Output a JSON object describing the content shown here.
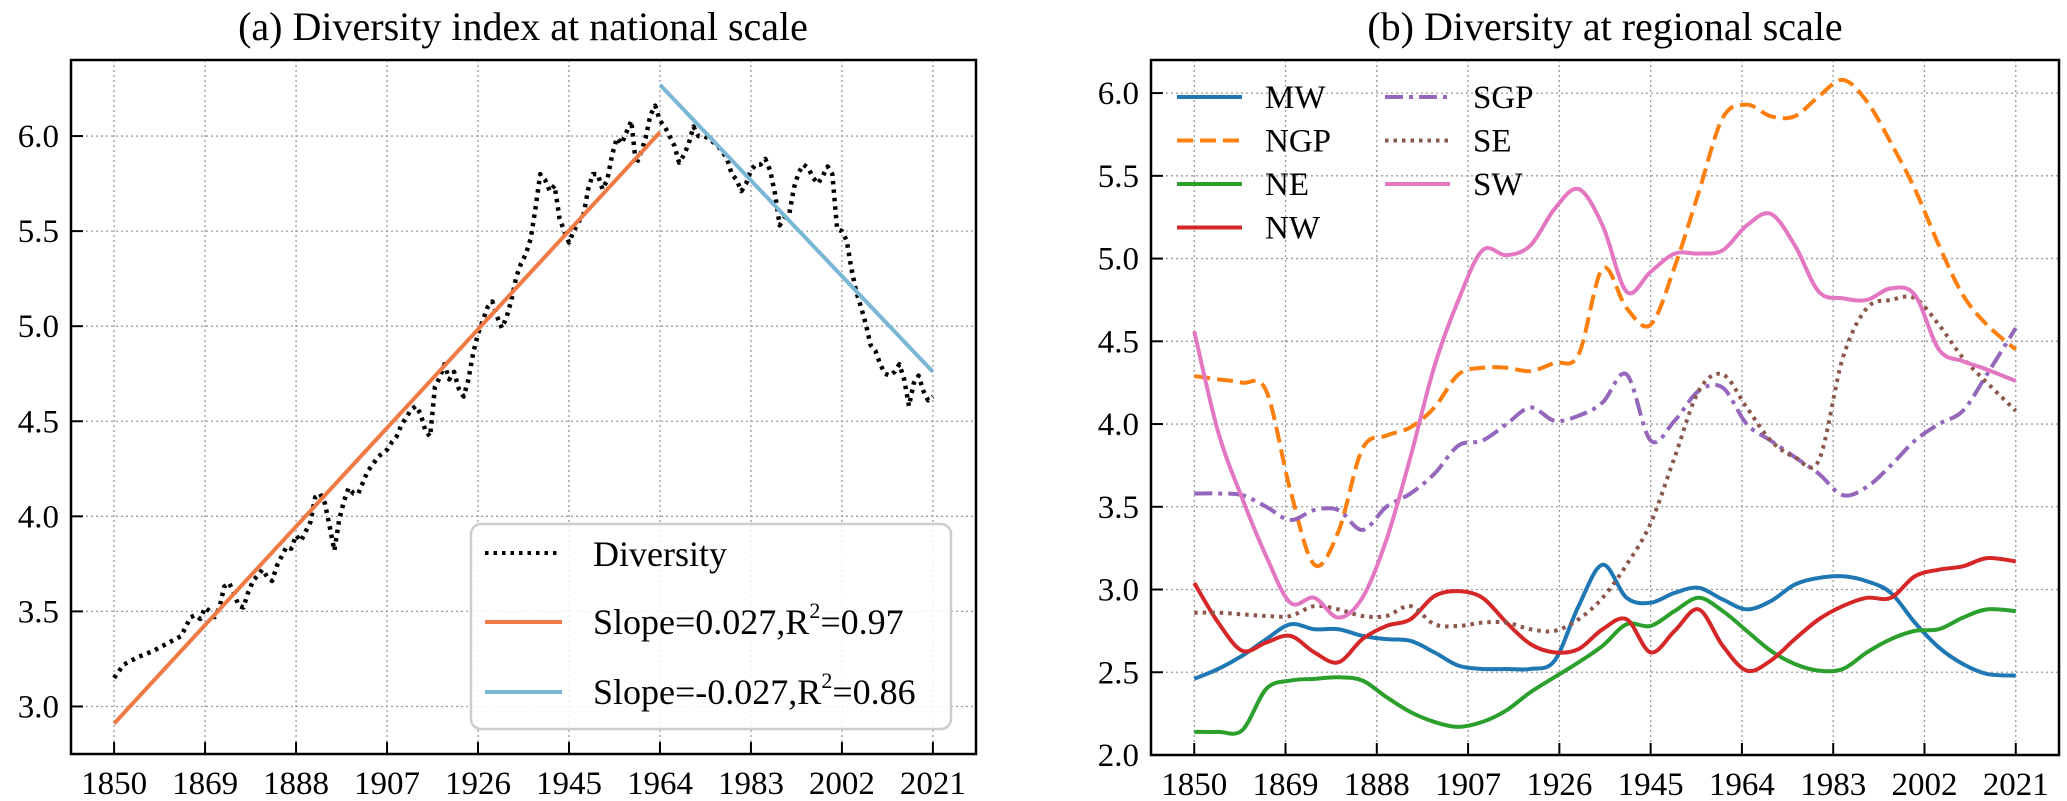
{
  "chart_data": [
    {
      "id": "a",
      "type": "line",
      "title": "(a) Diversity index at national scale",
      "xlabel": "",
      "ylabel": "",
      "xlim": [
        1841,
        2030
      ],
      "ylim": [
        2.75,
        6.4
      ],
      "grid": true,
      "xticks": [
        1850,
        1869,
        1888,
        1907,
        1926,
        1945,
        1964,
        1983,
        2002,
        2021
      ],
      "yticks": [
        3.0,
        3.5,
        4.0,
        4.5,
        5.0,
        5.5,
        6.0
      ],
      "ytick_labels": [
        "3.0",
        "3.5",
        "4.0",
        "4.5",
        "5.0",
        "5.5",
        "6.0"
      ],
      "legend_position": "lower-right",
      "series": [
        {
          "name": "Diversity",
          "style": "dotted",
          "color": "#000000",
          "x": [
            1850,
            1852,
            1855,
            1858,
            1861,
            1864,
            1866,
            1867,
            1868,
            1869,
            1870,
            1871,
            1872,
            1873,
            1874,
            1875,
            1876,
            1877,
            1878,
            1879,
            1880,
            1881,
            1882,
            1883,
            1884,
            1885,
            1886,
            1887,
            1888,
            1889,
            1890,
            1891,
            1892,
            1893,
            1894,
            1895,
            1896,
            1897,
            1898,
            1899,
            1900,
            1901,
            1902,
            1903,
            1904,
            1905,
            1906,
            1907,
            1908,
            1909,
            1910,
            1911,
            1912,
            1913,
            1914,
            1915,
            1916,
            1917,
            1918,
            1919,
            1920,
            1921,
            1922,
            1923,
            1924,
            1925,
            1926,
            1927,
            1928,
            1929,
            1930,
            1931,
            1932,
            1933,
            1934,
            1935,
            1936,
            1937,
            1938,
            1939,
            1940,
            1941,
            1942,
            1943,
            1944,
            1945,
            1946,
            1947,
            1948,
            1949,
            1950,
            1951,
            1952,
            1953,
            1954,
            1955,
            1956,
            1957,
            1958,
            1959,
            1960,
            1961,
            1962,
            1963,
            1964,
            1965,
            1966,
            1967,
            1968,
            1969,
            1970,
            1971,
            1972,
            1973,
            1974,
            1975,
            1976,
            1977,
            1978,
            1979,
            1980,
            1981,
            1982,
            1983,
            1984,
            1985,
            1986,
            1987,
            1988,
            1989,
            1990,
            1991,
            1992,
            1993,
            1994,
            1995,
            1996,
            1997,
            1998,
            1999,
            2000,
            2001,
            2002,
            2003,
            2004,
            2005,
            2006,
            2007,
            2008,
            2009,
            2010,
            2011,
            2012,
            2013,
            2014,
            2015,
            2016,
            2017,
            2018,
            2019,
            2020,
            2021
          ],
          "y": [
            3.15,
            3.22,
            3.26,
            3.29,
            3.33,
            3.37,
            3.47,
            3.48,
            3.46,
            3.52,
            3.5,
            3.47,
            3.52,
            3.63,
            3.65,
            3.6,
            3.53,
            3.52,
            3.6,
            3.66,
            3.69,
            3.72,
            3.68,
            3.66,
            3.74,
            3.79,
            3.84,
            3.83,
            3.9,
            3.87,
            3.92,
            3.97,
            4.1,
            4.12,
            4.07,
            3.95,
            3.82,
            3.98,
            4.08,
            4.15,
            4.12,
            4.12,
            4.18,
            4.24,
            4.27,
            4.31,
            4.33,
            4.35,
            4.39,
            4.42,
            4.48,
            4.52,
            4.56,
            4.58,
            4.54,
            4.45,
            4.42,
            4.68,
            4.73,
            4.8,
            4.72,
            4.76,
            4.67,
            4.63,
            4.72,
            4.86,
            4.96,
            5.03,
            5.1,
            5.13,
            5.05,
            4.99,
            5.05,
            5.14,
            5.26,
            5.33,
            5.38,
            5.46,
            5.62,
            5.8,
            5.77,
            5.71,
            5.74,
            5.57,
            5.5,
            5.44,
            5.5,
            5.55,
            5.58,
            5.72,
            5.8,
            5.8,
            5.72,
            5.77,
            5.9,
            5.99,
            5.96,
            6.02,
            6.08,
            5.85,
            5.91,
            5.99,
            6.11,
            6.16,
            6.08,
            6.05,
            6.0,
            5.95,
            5.86,
            5.9,
            5.96,
            6.05,
            6.0,
            6.0,
            5.99,
            5.97,
            5.95,
            5.92,
            5.88,
            5.8,
            5.77,
            5.71,
            5.75,
            5.82,
            5.85,
            5.85,
            5.88,
            5.82,
            5.7,
            5.53,
            5.57,
            5.59,
            5.73,
            5.81,
            5.85,
            5.83,
            5.78,
            5.75,
            5.79,
            5.84,
            5.8,
            5.51,
            5.5,
            5.45,
            5.3,
            5.18,
            5.1,
            5.01,
            4.9,
            4.87,
            4.8,
            4.75,
            4.74,
            4.76,
            4.8,
            4.72,
            4.58,
            4.7,
            4.74,
            4.66,
            4.61,
            4.63
          ]
        },
        {
          "name": "Slope=0.027,R²=0.97",
          "style": "solid",
          "color": "#f07a45",
          "x": [
            1850,
            1964
          ],
          "y": [
            2.91,
            6.02
          ]
        },
        {
          "name": "Slope=-0.027,R²=0.86",
          "style": "solid",
          "color": "#7ab6d6",
          "x": [
            1964,
            2021
          ],
          "y": [
            6.27,
            4.76
          ]
        }
      ],
      "legend": [
        {
          "label": "Diversity",
          "style": "dotted",
          "color": "#000000"
        },
        {
          "label_main": "Slope=0.027,R",
          "label_sup": "2",
          "label_tail": "=0.97",
          "style": "solid",
          "color": "#f07a45"
        },
        {
          "label_main": "Slope=-0.027,R",
          "label_sup": "2",
          "label_tail": "=0.86",
          "style": "solid",
          "color": "#7ab6d6"
        }
      ]
    },
    {
      "id": "b",
      "type": "line",
      "title": "(b) Diversity at regional scale",
      "xlabel": "",
      "ylabel": "",
      "xlim": [
        1841,
        2030
      ],
      "ylim": [
        2.0,
        6.2
      ],
      "grid": true,
      "xticks": [
        1850,
        1869,
        1888,
        1907,
        1926,
        1945,
        1964,
        1983,
        2002,
        2021
      ],
      "yticks": [
        2.0,
        2.5,
        3.0,
        3.5,
        4.0,
        4.5,
        5.0,
        5.5,
        6.0
      ],
      "ytick_labels": [
        "2.0",
        "2.5",
        "3.0",
        "3.5",
        "4.0",
        "4.5",
        "5.0",
        "5.5",
        "6.0"
      ],
      "legend_position": "upper-left",
      "x": [
        1850,
        1855,
        1860,
        1865,
        1870,
        1875,
        1880,
        1885,
        1890,
        1895,
        1900,
        1905,
        1910,
        1915,
        1920,
        1925,
        1930,
        1935,
        1940,
        1945,
        1950,
        1955,
        1960,
        1965,
        1970,
        1975,
        1980,
        1985,
        1990,
        1995,
        2000,
        2005,
        2010,
        2015,
        2021
      ],
      "series": [
        {
          "name": "MW",
          "style": "solid",
          "color": "#1f77b4",
          "y": [
            2.46,
            2.52,
            2.6,
            2.7,
            2.79,
            2.76,
            2.76,
            2.72,
            2.7,
            2.69,
            2.62,
            2.54,
            2.52,
            2.52,
            2.52,
            2.57,
            2.9,
            3.15,
            2.95,
            2.92,
            2.98,
            3.01,
            2.94,
            2.88,
            2.93,
            3.03,
            3.07,
            3.08,
            3.05,
            2.98,
            2.8,
            2.65,
            2.55,
            2.49,
            2.48
          ]
        },
        {
          "name": "NGP",
          "style": "dashed",
          "color": "#ff7f0e",
          "y": [
            4.29,
            4.27,
            4.25,
            4.2,
            3.6,
            3.15,
            3.35,
            3.85,
            3.93,
            3.98,
            4.1,
            4.3,
            4.34,
            4.34,
            4.32,
            4.37,
            4.42,
            4.94,
            4.7,
            4.6,
            4.95,
            5.4,
            5.85,
            5.93,
            5.86,
            5.86,
            5.98,
            6.08,
            5.95,
            5.7,
            5.42,
            5.08,
            4.78,
            4.6,
            4.45
          ]
        },
        {
          "name": "NE",
          "style": "solid",
          "color": "#2ca02c",
          "y": [
            2.14,
            2.14,
            2.15,
            2.4,
            2.45,
            2.46,
            2.47,
            2.45,
            2.35,
            2.26,
            2.2,
            2.17,
            2.2,
            2.27,
            2.38,
            2.47,
            2.56,
            2.66,
            2.79,
            2.78,
            2.87,
            2.95,
            2.87,
            2.75,
            2.63,
            2.55,
            2.51,
            2.52,
            2.62,
            2.7,
            2.75,
            2.76,
            2.83,
            2.88,
            2.87
          ]
        },
        {
          "name": "NW",
          "style": "solid",
          "color": "#d62728",
          "y": [
            3.04,
            2.8,
            2.63,
            2.68,
            2.72,
            2.62,
            2.56,
            2.7,
            2.78,
            2.82,
            2.96,
            2.99,
            2.95,
            2.8,
            2.67,
            2.62,
            2.64,
            2.76,
            2.82,
            2.62,
            2.75,
            2.88,
            2.66,
            2.51,
            2.57,
            2.7,
            2.82,
            2.9,
            2.95,
            2.95,
            3.08,
            3.12,
            3.14,
            3.19,
            3.17
          ]
        },
        {
          "name": "SGP",
          "style": "dashdot",
          "color": "#9467bd",
          "y": [
            3.58,
            3.58,
            3.57,
            3.5,
            3.42,
            3.48,
            3.48,
            3.36,
            3.5,
            3.58,
            3.7,
            3.87,
            3.9,
            4.0,
            4.1,
            4.02,
            4.05,
            4.13,
            4.3,
            3.9,
            4.02,
            4.2,
            4.22,
            4.0,
            3.9,
            3.8,
            3.7,
            3.57,
            3.62,
            3.75,
            3.9,
            4.0,
            4.08,
            4.3,
            4.58
          ]
        },
        {
          "name": "SE",
          "style": "dotted",
          "color": "#8c564b",
          "y": [
            2.86,
            2.86,
            2.85,
            2.84,
            2.84,
            2.9,
            2.88,
            2.84,
            2.84,
            2.9,
            2.79,
            2.78,
            2.8,
            2.8,
            2.76,
            2.75,
            2.82,
            2.95,
            3.15,
            3.4,
            3.8,
            4.2,
            4.3,
            4.1,
            3.9,
            3.8,
            3.78,
            4.4,
            4.7,
            4.75,
            4.76,
            4.6,
            4.4,
            4.25,
            4.08
          ]
        },
        {
          "name": "SW",
          "style": "solid",
          "color": "#e377c2",
          "y": [
            4.56,
            3.95,
            3.55,
            3.2,
            2.92,
            2.95,
            2.83,
            2.95,
            3.3,
            3.8,
            4.35,
            4.75,
            5.05,
            5.02,
            5.08,
            5.3,
            5.42,
            5.2,
            4.8,
            4.92,
            5.03,
            5.03,
            5.05,
            5.2,
            5.27,
            5.08,
            4.8,
            4.76,
            4.75,
            4.82,
            4.78,
            4.45,
            4.38,
            4.33,
            4.26
          ]
        }
      ]
    }
  ]
}
